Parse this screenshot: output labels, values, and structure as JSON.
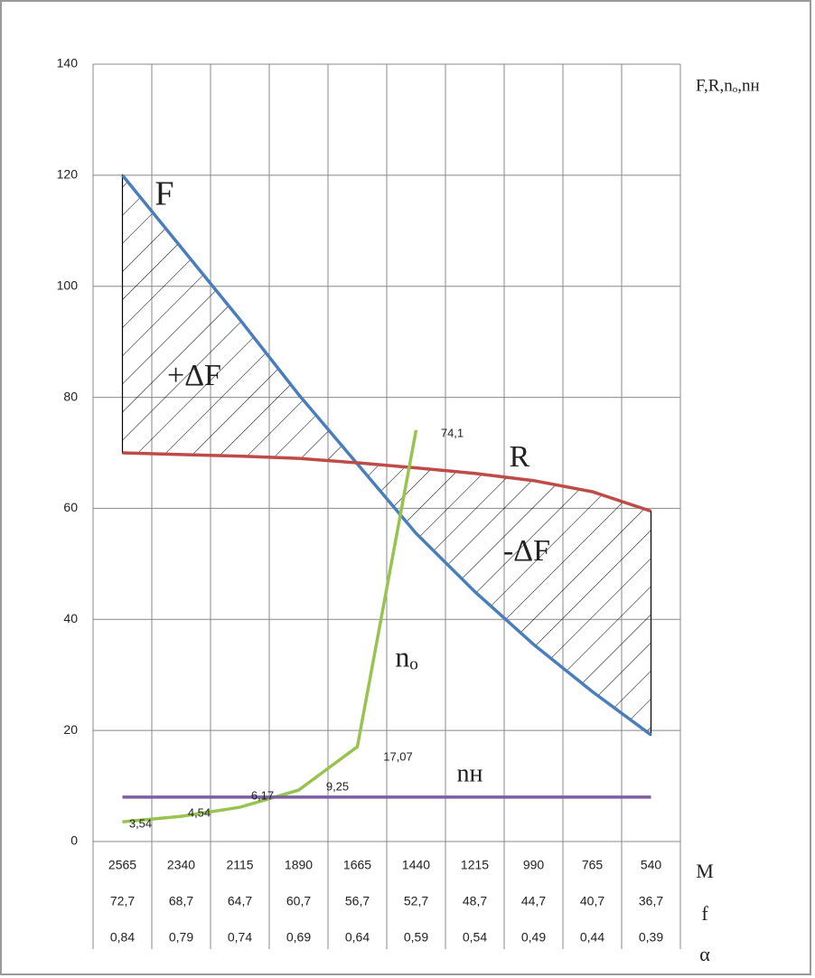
{
  "chart_data": {
    "type": "line",
    "axis_label": "F,R,nₒ,nн",
    "category_label": "M",
    "categories": [
      2565,
      2340,
      2115,
      1890,
      1665,
      1440,
      1215,
      990,
      765,
      540
    ],
    "rows": [
      {
        "label": "f",
        "values": [
          "72,7",
          "68,7",
          "64,7",
          "60,7",
          "56,7",
          "52,7",
          "48,7",
          "44,7",
          "40,7",
          "36,7"
        ]
      },
      {
        "label": "α",
        "values": [
          "0,84",
          "0,79",
          "0,74",
          "0,69",
          "0,64",
          "0,59",
          "0,54",
          "0,49",
          "0,44",
          "0,39"
        ]
      }
    ],
    "series": [
      {
        "name": "F",
        "color": "#4a7ebb",
        "values": [
          120,
          107,
          94,
          80.5,
          68,
          55.5,
          45,
          35.5,
          27,
          19.2
        ]
      },
      {
        "name": "R",
        "color": "#be4b48",
        "values": [
          70,
          69.7,
          69.4,
          69,
          68.2,
          67.3,
          66.3,
          65,
          63,
          59.5
        ]
      },
      {
        "name": "nₒ",
        "color": "#98c34f",
        "values": [
          3.54,
          4.54,
          6.17,
          9.25,
          17.07,
          74.1,
          null,
          null,
          null,
          null
        ],
        "value_labels": [
          "3,54",
          "4,54",
          "6,17",
          "9,25",
          "17,07",
          "74,1",
          null,
          null,
          null,
          null
        ]
      },
      {
        "name": "nн",
        "color": "#7d5fa0",
        "values": [
          8,
          8,
          8,
          8,
          8,
          8,
          8,
          8,
          8,
          8
        ]
      }
    ],
    "annotations": [
      "+ΔF",
      "-ΔF"
    ],
    "ylim": [
      0,
      140
    ],
    "yticks": [
      0,
      20,
      40,
      60,
      80,
      100,
      120,
      140
    ],
    "grid": true
  }
}
